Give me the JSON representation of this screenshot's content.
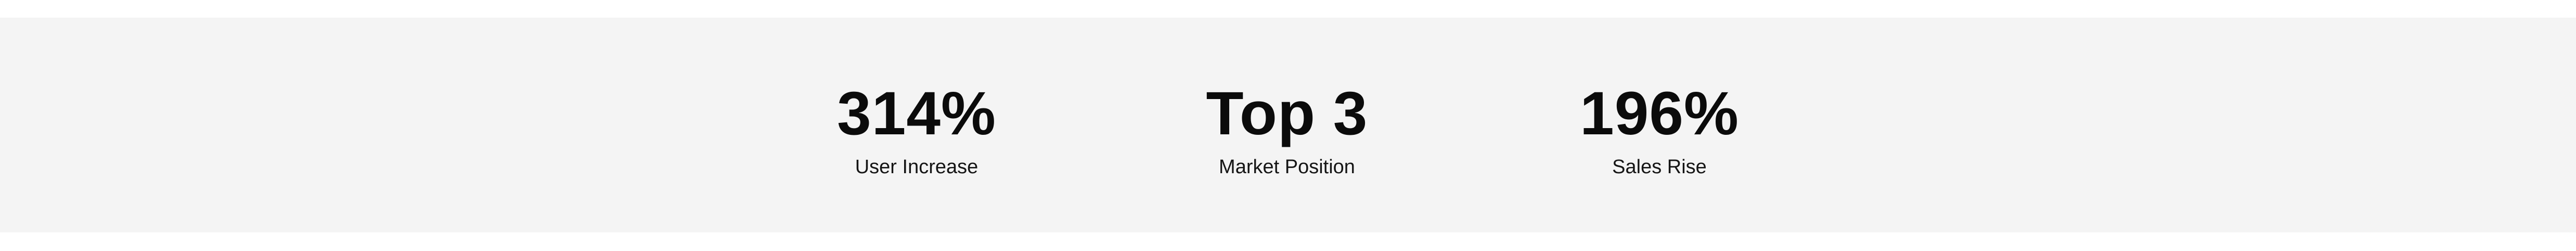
{
  "stats": [
    {
      "value": "314%",
      "label": "User Increase"
    },
    {
      "value": "Top 3",
      "label": "Market Position"
    },
    {
      "value": "196%",
      "label": "Sales Rise"
    }
  ],
  "colors": {
    "band_background": "#f4f4f4",
    "text": "#0b0b0b"
  }
}
